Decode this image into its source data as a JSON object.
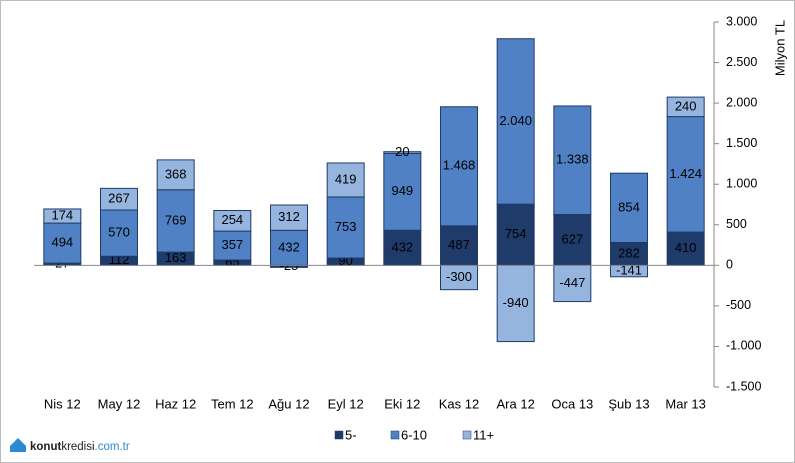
{
  "chart_data": {
    "type": "stacked_bar",
    "y_axis_label": "Milyon TL",
    "categories": [
      "Nis 12",
      "May 12",
      "Haz 12",
      "Tem 12",
      "Ağu 12",
      "Eyl 12",
      "Eki 12",
      "Kas 12",
      "Ara 12",
      "Oca 13",
      "Şub 13",
      "Mar 13"
    ],
    "series": [
      {
        "name": "5-",
        "color": "#1f3b6a",
        "values": [
          27,
          112,
          163,
          65,
          -25,
          90,
          432,
          487,
          754,
          627,
          282,
          410
        ]
      },
      {
        "name": "6-10",
        "color": "#4f81c4",
        "values": [
          494,
          570,
          769,
          357,
          432,
          753,
          949,
          1468,
          2040,
          1338,
          854,
          1424
        ],
        "value_labels": [
          "494",
          "570",
          "769",
          "357",
          "432",
          "753",
          "949",
          "1.468",
          "2.040",
          "1.338",
          "854",
          "1.424"
        ]
      },
      {
        "name": "11+",
        "color": "#95b5df",
        "values": [
          174,
          267,
          368,
          254,
          312,
          419,
          20,
          -300,
          -940,
          -447,
          -141,
          240
        ]
      }
    ],
    "ylim": [
      -1500,
      3000
    ],
    "yticks": [
      {
        "value": -1500,
        "label": "-1.500"
      },
      {
        "value": -1000,
        "label": "-1.000"
      },
      -500,
      0,
      500,
      {
        "value": 1000,
        "label": "1.000"
      },
      {
        "value": 1500,
        "label": "1.500"
      },
      {
        "value": 2000,
        "label": "2.000"
      },
      {
        "value": 2500,
        "label": "2.500"
      },
      {
        "value": 3000,
        "label": "3.000"
      }
    ],
    "y_axis_side": "right",
    "legend": "bottom",
    "logo": [
      "konut",
      "kredisi",
      ".com.tr"
    ]
  }
}
